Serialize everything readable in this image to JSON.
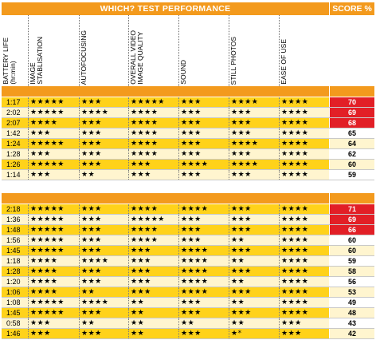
{
  "header": {
    "title": "WHICH?  TEST PERFORMANCE",
    "score_label": "SCORE %"
  },
  "columns": [
    "BATTERY LIFE\n(hr:min)",
    "IMAGE\nSTABLISATION",
    "AUTOFOCUSING",
    "OVERALL VIDEO\nIMAGE QUALITY",
    "SOUND",
    "STILL PHOTOS",
    "EASE OF USE"
  ],
  "colors": {
    "orange": "#f39a1d",
    "yellow": "#ffd21a",
    "cream": "#fff5cf",
    "red": "#e21f26",
    "footnote_star": "#b08a00"
  },
  "groups": [
    {
      "rows": [
        {
          "battery": "1:17",
          "stab": "★★★★★",
          "af": "★★★",
          "video": "★★★★★",
          "sound": "★★★",
          "photos": "★★★★",
          "ease": "★★★★",
          "score": "70",
          "top": true
        },
        {
          "battery": "2:02",
          "stab": "★★★★★",
          "af": "★★★★",
          "video": "★★★★",
          "sound": "★★★",
          "photos": "★★★",
          "ease": "★★★★",
          "score": "69",
          "top": true
        },
        {
          "battery": "2:07",
          "stab": "★★★★",
          "af": "★★★",
          "video": "★★★★",
          "sound": "★★★",
          "photos": "★★★",
          "ease": "★★★★",
          "score": "68",
          "top": true
        },
        {
          "battery": "1:42",
          "stab": "★★★",
          "af": "★★★",
          "video": "★★★★",
          "sound": "★★★",
          "photos": "★★★",
          "ease": "★★★★",
          "score": "65",
          "top": false
        },
        {
          "battery": "1:24",
          "stab": "★★★★★",
          "af": "★★★",
          "video": "★★★★",
          "sound": "★★★",
          "photos": "★★★★",
          "ease": "★★★★",
          "score": "64",
          "top": false
        },
        {
          "battery": "1:28",
          "stab": "★★★",
          "af": "★★★",
          "video": "★★★★",
          "sound": "★★★",
          "photos": "★★★",
          "ease": "★★★★",
          "score": "62",
          "top": false
        },
        {
          "battery": "1:26",
          "stab": "★★★★★",
          "af": "★★★",
          "video": "★★★",
          "sound": "★★★★",
          "photos": "★★★★",
          "ease": "★★★★",
          "score": "60",
          "top": false
        },
        {
          "battery": "1:14",
          "stab": "★★★",
          "af": "★★",
          "video": "★★★",
          "sound": "★★★",
          "photos": "★★★",
          "ease": "★★★★",
          "score": "59",
          "top": false
        }
      ]
    },
    {
      "rows": [
        {
          "battery": "2:18",
          "stab": "★★★★★",
          "af": "★★★",
          "video": "★★★★",
          "sound": "★★★★",
          "photos": "★★★",
          "ease": "★★★★",
          "score": "71",
          "top": true
        },
        {
          "battery": "1:36",
          "stab": "★★★★★",
          "af": "★★★",
          "video": "★★★★★",
          "sound": "★★★",
          "photos": "★★★",
          "ease": "★★★★",
          "score": "69",
          "top": true
        },
        {
          "battery": "1:48",
          "stab": "★★★★★",
          "af": "★★★",
          "video": "★★★★",
          "sound": "★★★",
          "photos": "★★★",
          "ease": "★★★★",
          "score": "66",
          "top": true
        },
        {
          "battery": "1:56",
          "stab": "★★★★★",
          "af": "★★★",
          "video": "★★★★",
          "sound": "★★★",
          "photos": "★★",
          "ease": "★★★★",
          "score": "60",
          "top": false
        },
        {
          "battery": "1:45",
          "stab": "★★★★★",
          "af": "★★★",
          "video": "★★★",
          "sound": "★★★★",
          "photos": "★★★",
          "ease": "★★★★",
          "score": "60",
          "top": false
        },
        {
          "battery": "1:18",
          "stab": "★★★★",
          "af": "★★★★",
          "video": "★★★",
          "sound": "★★★★",
          "photos": "★★",
          "ease": "★★★★",
          "score": "59",
          "top": false
        },
        {
          "battery": "1:28",
          "stab": "★★★★",
          "af": "★★★",
          "video": "★★★",
          "sound": "★★★★",
          "photos": "★★★",
          "ease": "★★★★",
          "score": "58",
          "top": false
        },
        {
          "battery": "1:20",
          "stab": "★★★★",
          "af": "★★★",
          "video": "★★★",
          "sound": "★★★★",
          "photos": "★★",
          "ease": "★★★★",
          "score": "56",
          "top": false
        },
        {
          "battery": "1:06",
          "stab": "★★★★",
          "af": "★★",
          "video": "★★★",
          "sound": "★★★★",
          "photos": "★★★",
          "ease": "★★★★",
          "score": "53",
          "top": false
        },
        {
          "battery": "1:08",
          "stab": "★★★★★",
          "af": "★★★★",
          "video": "★★",
          "sound": "★★★",
          "photos": "★★",
          "ease": "★★★★",
          "score": "49",
          "top": false
        },
        {
          "battery": "1:45",
          "stab": "★★★★★",
          "af": "★★★",
          "video": "★★",
          "sound": "★★★",
          "photos": "★★★",
          "ease": "★★★★",
          "score": "48",
          "top": false
        },
        {
          "battery": "0:58",
          "stab": "★★★",
          "af": "★★",
          "video": "★★",
          "sound": "★★",
          "photos": "★★",
          "ease": "★★★",
          "score": "43",
          "top": false
        },
        {
          "battery": "1:46",
          "stab": "★★★",
          "af": "★★★",
          "video": "★★",
          "sound": "★★★",
          "photos": "★*",
          "ease": "★★★",
          "score": "42",
          "top": false
        }
      ]
    }
  ]
}
